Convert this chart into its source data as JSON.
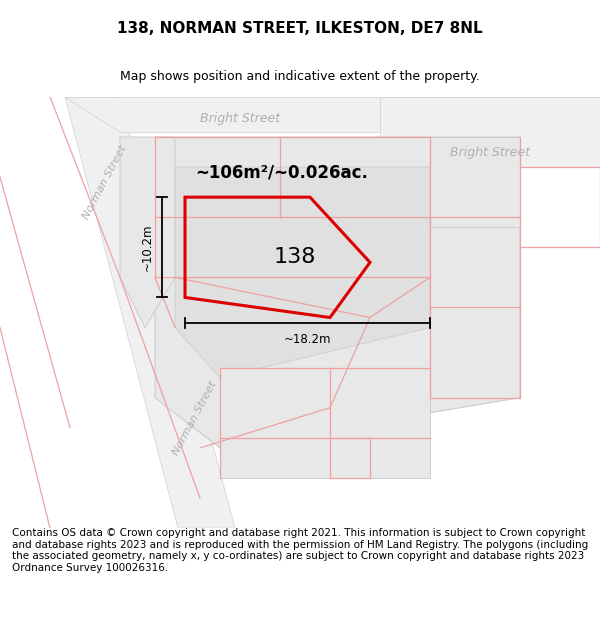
{
  "title": "138, NORMAN STREET, ILKESTON, DE7 8NL",
  "subtitle": "Map shows position and indicative extent of the property.",
  "footer": "Contains OS data © Crown copyright and database right 2021. This information is subject to Crown copyright and database rights 2023 and is reproduced with the permission of HM Land Registry. The polygons (including the associated geometry, namely x, y co-ordinates) are subject to Crown copyright and database rights 2023 Ordnance Survey 100026316.",
  "bg_color": "#ffffff",
  "building_fill": "#e8e8e8",
  "building_edge": "#c8c8c8",
  "pink_line_color": "#f0a0a0",
  "red_poly_color": "#dd0000",
  "street_label_color": "#b0b0b0",
  "area_text": "~106m²/~0.026ac.",
  "number_text": "138",
  "dim_width": "~18.2m",
  "dim_height": "~10.2m",
  "title_fontsize": 11,
  "subtitle_fontsize": 9,
  "footer_fontsize": 7.5
}
